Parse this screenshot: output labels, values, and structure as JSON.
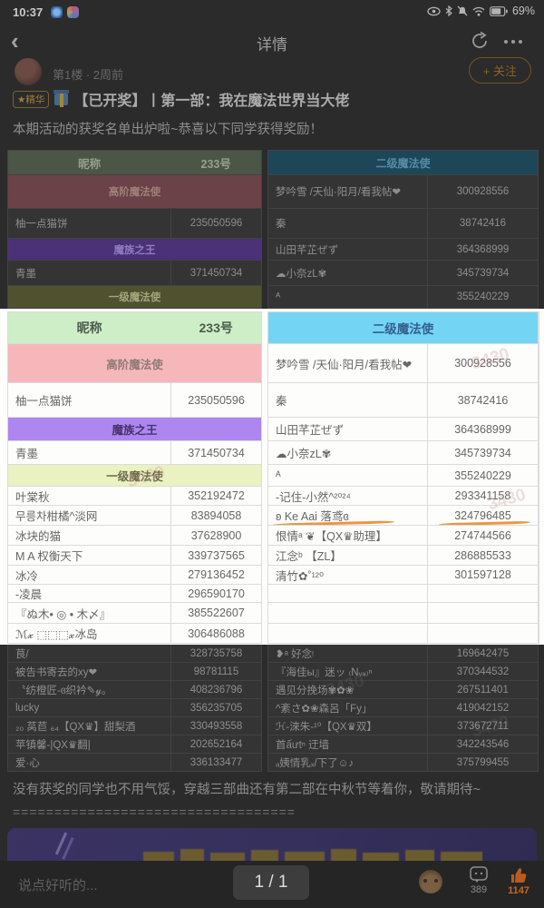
{
  "status_bar": {
    "time": "10:37",
    "battery": "69%"
  },
  "nav": {
    "title": "详情"
  },
  "post": {
    "floor": "第1楼 · 2周前",
    "follow_label": "+ 关注",
    "badge": "★精华",
    "title": "【已开奖】丨第一部：我在魔法世界当大佬",
    "intro": "本期活动的获奖名单出炉啦~恭喜以下同学获得奖励！",
    "outro": "没有获奖的同学也不用气馁，穿越三部曲还有第二部在中秋节等着你，敬请期待~",
    "divider": "=================================="
  },
  "table": {
    "headers": {
      "nickname": "昵称",
      "number": "233号",
      "right_group": "二级魔法使"
    },
    "top_rows": [
      {
        "span": "高阶魔法使",
        "color": "pink",
        "rname": "梦吟雪 /天仙·阳月/看我帖❤",
        "rnum": "300928556"
      },
      {
        "lname": "柚一点猫饼",
        "lnum": "235050596",
        "rname": "秦",
        "rnum": "38742416"
      },
      {
        "span": "魔族之王",
        "color": "purple",
        "rname": "山田芊芷ぜず",
        "rnum": "364368999"
      },
      {
        "lname": "青墨",
        "lnum": "371450734",
        "rname": "☁小奈zL✾",
        "rnum": "345739734"
      },
      {
        "span": "一级魔法使",
        "color": "yellow",
        "rname": "ᴬ",
        "rnum": "355240229"
      }
    ],
    "viewer_rows": [
      {
        "span": "高阶魔法使",
        "color": "pink",
        "rname": "梦吟雪 /天仙·阳月/看我帖❤",
        "rnum": "300928556"
      },
      {
        "lname": "柚一点猫饼",
        "lnum": "235050596",
        "rname": "秦",
        "rnum": "38742416"
      },
      {
        "span": "魔族之王",
        "color": "purple",
        "rname": "山田芊芷ぜず",
        "rnum": "364368999"
      },
      {
        "lname": "青墨",
        "lnum": "371450734",
        "rname": "☁小奈zL✾",
        "rnum": "345739734"
      },
      {
        "span": "一级魔法使",
        "color": "yellow",
        "rname": "ᴬ",
        "rnum": "355240229"
      },
      {
        "lname": "叶棠秋",
        "lnum": "352192472",
        "rname": "-记住-小然^²⁰²⁴",
        "rnum": "293341158"
      },
      {
        "lname": "무릉차柑橘^淡网",
        "lnum": "83894058",
        "rname": "ʚ Ke Aai 落鸢ɞ",
        "rnum": "324796485",
        "underline": true
      },
      {
        "lname": "冰块的猫",
        "lnum": "37628900",
        "rname": "恨情ᵃ ❦【QX♛助理】",
        "rnum": "274744566"
      },
      {
        "lname": "M A  权衡天下",
        "lnum": "339737565",
        "rname": "江念ᵇ 【ZL】",
        "rnum": "286885533"
      },
      {
        "lname": "冰冷",
        "lnum": "279136452",
        "rname": "清竹✿˚¹²⁰",
        "rnum": "301597128"
      },
      {
        "lname": "-凌晨",
        "lnum": "296590170",
        "rname": "",
        "rnum": ""
      },
      {
        "lname": "『ぬ木• ◎ • 木〆』",
        "lnum": "385522607",
        "rname": "",
        "rnum": ""
      },
      {
        "lname": "ℳ𝔁 ⬚⬚⬚𝔁冰岛",
        "lnum": "306486088",
        "rname": "",
        "rnum": ""
      }
    ],
    "bottom_rows": [
      {
        "lname": "茛/",
        "lnum": "328735758",
        "rname": "❥ᵃ 好念ᵎ",
        "rnum": "169642475"
      },
      {
        "lname": "被告书寄去的xy❤",
        "lnum": "98781115",
        "rname": "『海佳ы』迷ッ ₍Nᵥₐ₎ⁿ",
        "rnum": "370344532"
      },
      {
        "lname": "〝纺橙匠-ɞ织衿✎𝓎。",
        "lnum": "408236796",
        "rname": "遇见分挽场✾✿❀",
        "rnum": "267511401"
      },
      {
        "lname": "lucky",
        "lnum": "356235705",
        "rname": "^紊さ✿❀森呂「Fy」",
        "rnum": "419042152"
      },
      {
        "lname": "₂₀ 莴苣 ₆₄【QX♛】甜梨酒",
        "lnum": "330493558",
        "rname": "ℋ-淶朱-¹⁰【QX♛双】",
        "rnum": "373672711"
      },
      {
        "lname": "苹镇馨-|QX♛翻|",
        "lnum": "202652164",
        "rname": "首ấưtⁿ 迂墙",
        "rnum": "342243546"
      },
      {
        "lname": "爱·心",
        "lnum": "336133477",
        "rname": "ₐ姨情乳ₓ/下了☺♪",
        "rnum": "375799455"
      }
    ]
  },
  "viewer": {
    "page_indicator": "1 / 1",
    "watermark": "3430"
  },
  "bottom_bar": {
    "placeholder": "说点好听的...",
    "comment_count": "389",
    "like_count": "1147"
  }
}
